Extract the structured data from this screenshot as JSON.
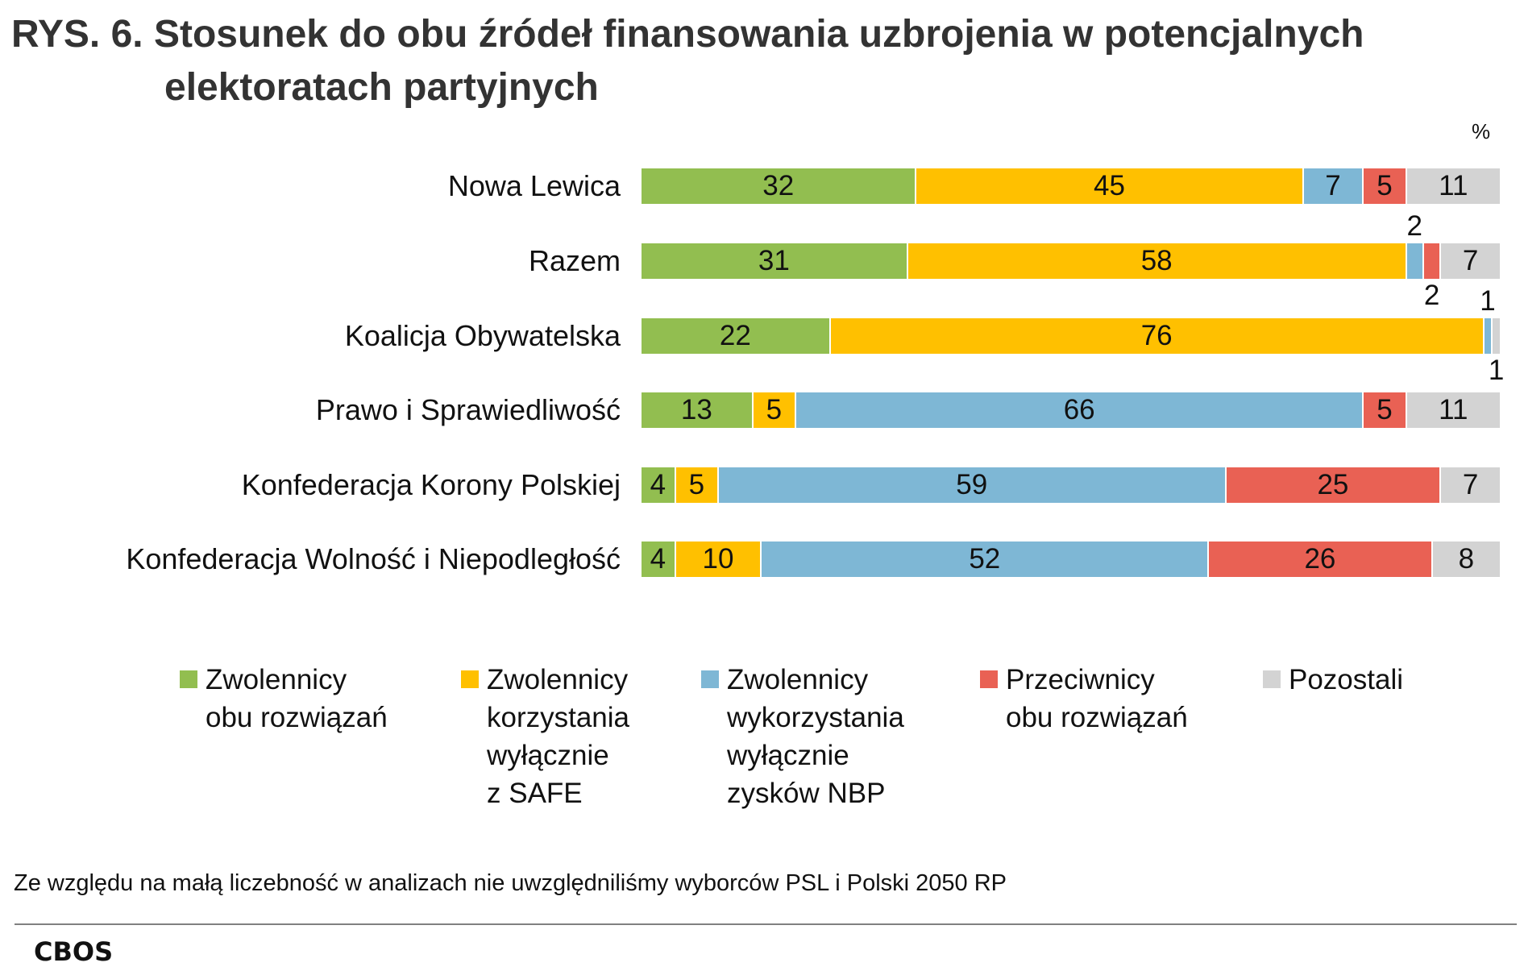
{
  "chart_data": {
    "type": "bar",
    "orientation": "horizontal-stacked-100",
    "title_line1": "RYS. 6. Stosunek do obu źródeł finansowania uzbrojenia w potencjalnych",
    "title_line2": "elektoratach partyjnych",
    "unit": "%",
    "categories": [
      "Nowa Lewica",
      "Razem",
      "Koalicja Obywatelska",
      "Prawo i Sprawiedliwość",
      "Konfederacja Korony Polskiej",
      "Konfederacja Wolność i Niepodległość"
    ],
    "series": [
      {
        "name": "Zwolennicy\nobu rozwiązań",
        "color": "#92BE50",
        "values": [
          32,
          31,
          22,
          13,
          4,
          4
        ]
      },
      {
        "name": "Zwolennicy\nkorzystania\nwyłącznie\nz SAFE",
        "color": "#FFC000",
        "values": [
          45,
          58,
          76,
          5,
          5,
          10
        ]
      },
      {
        "name": "Zwolennicy\nwykorzystania\nwyłącznie\nzysków NBP",
        "color": "#7EB7D5",
        "values": [
          7,
          2,
          1,
          66,
          59,
          52
        ]
      },
      {
        "name": "Przeciwnicy\nobu rozwiązań",
        "color": "#E96154",
        "values": [
          5,
          2,
          0,
          5,
          25,
          26
        ]
      },
      {
        "name": "Pozostali",
        "color": "#D3D3D3",
        "values": [
          11,
          7,
          1,
          11,
          7,
          8
        ]
      }
    ],
    "xlim": [
      0,
      100
    ],
    "grid": false,
    "legend_position": "bottom"
  },
  "footnote": "Ze względu na małą liczebność w analizach nie uwzględniliśmy wyborców PSL i Polski 2050 RP",
  "logo": "CBOS"
}
